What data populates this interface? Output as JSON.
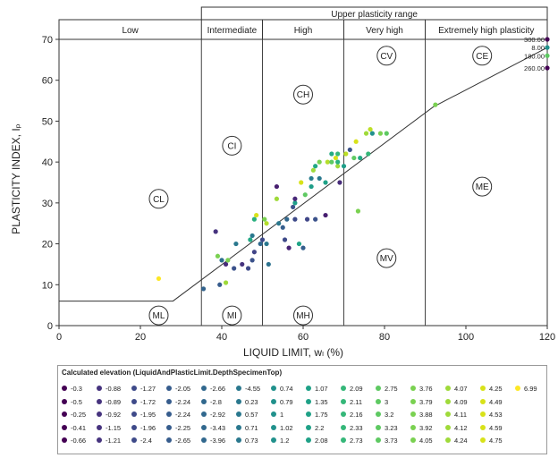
{
  "chart_data": {
    "type": "scatter",
    "title": "",
    "xlabel": "LIQUID LIMIT, wₗ (%)",
    "ylabel": "PLASTICITY INDEX, Iₚ",
    "xlim": [
      0,
      120
    ],
    "ylim": [
      0,
      70
    ],
    "xticks": [
      0,
      20,
      40,
      60,
      80,
      100,
      120
    ],
    "yticks": [
      0,
      10,
      20,
      30,
      40,
      50,
      60,
      70
    ],
    "grid": false,
    "header_title": "Upper plasticity range",
    "zones": [
      {
        "label": "Low",
        "x_from": 0,
        "x_to": 35
      },
      {
        "label": "Intermediate",
        "x_from": 35,
        "x_to": 50
      },
      {
        "label": "High",
        "x_from": 50,
        "x_to": 70
      },
      {
        "label": "Very high",
        "x_from": 70,
        "x_to": 90
      },
      {
        "label": "Extremely high plasticity",
        "x_from": 90,
        "x_to": 120
      }
    ],
    "a_line": [
      [
        0,
        6
      ],
      [
        28,
        6
      ],
      [
        92,
        53.5
      ],
      [
        120,
        68
      ]
    ],
    "region_labels": [
      {
        "text": "CL",
        "x": 24.5,
        "y": 31
      },
      {
        "text": "CI",
        "x": 42.5,
        "y": 44
      },
      {
        "text": "CH",
        "x": 60,
        "y": 56.5
      },
      {
        "text": "CV",
        "x": 80.5,
        "y": 66
      },
      {
        "text": "CE",
        "x": 104,
        "y": 66
      },
      {
        "text": "ME",
        "x": 104,
        "y": 34
      },
      {
        "text": "MV",
        "x": 80.5,
        "y": 16.5
      },
      {
        "text": "ML",
        "x": 24.5,
        "y": 2.5
      },
      {
        "text": "MI",
        "x": 42.5,
        "y": 2.5
      },
      {
        "text": "MH",
        "x": 60,
        "y": 2.5
      }
    ],
    "edge_labels": [
      {
        "text": "300.00",
        "x": 120,
        "y": 70
      },
      {
        "text": "8.00",
        "x": 120,
        "y": 68
      },
      {
        "text": "180.00",
        "x": 120,
        "y": 66
      },
      {
        "text": "260.00",
        "x": 120,
        "y": 63
      }
    ],
    "points": [
      {
        "x": 24.5,
        "y": 11.5,
        "color": "#fde725"
      },
      {
        "x": 35.5,
        "y": 9,
        "color": "#33638d"
      },
      {
        "x": 38.5,
        "y": 23,
        "color": "#46337e"
      },
      {
        "x": 39,
        "y": 17,
        "color": "#7ad151"
      },
      {
        "x": 39.5,
        "y": 10,
        "color": "#365c8d"
      },
      {
        "x": 40,
        "y": 16,
        "color": "#2d708e"
      },
      {
        "x": 41,
        "y": 15,
        "color": "#472d7b"
      },
      {
        "x": 41,
        "y": 10.5,
        "color": "#9fda3a"
      },
      {
        "x": 41.5,
        "y": 16,
        "color": "#7ad151"
      },
      {
        "x": 43,
        "y": 14,
        "color": "#3b528b"
      },
      {
        "x": 43.5,
        "y": 20,
        "color": "#2a788e"
      },
      {
        "x": 45,
        "y": 15,
        "color": "#46337e"
      },
      {
        "x": 46.5,
        "y": 14,
        "color": "#3e4a89"
      },
      {
        "x": 47,
        "y": 21,
        "color": "#22a884"
      },
      {
        "x": 47.5,
        "y": 22,
        "color": "#2a788e"
      },
      {
        "x": 47.5,
        "y": 16,
        "color": "#3b528b"
      },
      {
        "x": 48,
        "y": 18,
        "color": "#414487"
      },
      {
        "x": 48,
        "y": 26,
        "color": "#2ab07f"
      },
      {
        "x": 48.5,
        "y": 27,
        "color": "#d8e219"
      },
      {
        "x": 49.5,
        "y": 20,
        "color": "#31688e"
      },
      {
        "x": 50,
        "y": 21,
        "color": "#3e4a89"
      },
      {
        "x": 50.5,
        "y": 26,
        "color": "#7ad151"
      },
      {
        "x": 51,
        "y": 25,
        "color": "#b5de2b"
      },
      {
        "x": 51,
        "y": 20,
        "color": "#2a788e"
      },
      {
        "x": 51.5,
        "y": 15,
        "color": "#2c728e"
      },
      {
        "x": 53.5,
        "y": 34,
        "color": "#481f70"
      },
      {
        "x": 53.5,
        "y": 31,
        "color": "#9fda3a"
      },
      {
        "x": 54,
        "y": 25,
        "color": "#2a788e"
      },
      {
        "x": 55,
        "y": 24,
        "color": "#355f8d"
      },
      {
        "x": 55.5,
        "y": 21,
        "color": "#3e4a89"
      },
      {
        "x": 56,
        "y": 26,
        "color": "#31688e"
      },
      {
        "x": 56.5,
        "y": 19,
        "color": "#482475"
      },
      {
        "x": 57.5,
        "y": 29,
        "color": "#3b528b"
      },
      {
        "x": 58,
        "y": 30,
        "color": "#1f9e89"
      },
      {
        "x": 58,
        "y": 31,
        "color": "#482878"
      },
      {
        "x": 58,
        "y": 26,
        "color": "#3e4a89"
      },
      {
        "x": 59,
        "y": 20,
        "color": "#20a486"
      },
      {
        "x": 59.5,
        "y": 35,
        "color": "#d8e219"
      },
      {
        "x": 60,
        "y": 19,
        "color": "#355f8d"
      },
      {
        "x": 60.5,
        "y": 32,
        "color": "#5ec962"
      },
      {
        "x": 61,
        "y": 26,
        "color": "#404688"
      },
      {
        "x": 62,
        "y": 36,
        "color": "#287d8e"
      },
      {
        "x": 62,
        "y": 34,
        "color": "#1f9e89"
      },
      {
        "x": 62.5,
        "y": 38,
        "color": "#9fda3a"
      },
      {
        "x": 63,
        "y": 39,
        "color": "#22a884"
      },
      {
        "x": 63,
        "y": 26,
        "color": "#3b528b"
      },
      {
        "x": 64,
        "y": 40,
        "color": "#7ad151"
      },
      {
        "x": 64,
        "y": 36,
        "color": "#2a788e"
      },
      {
        "x": 65.5,
        "y": 27,
        "color": "#481f70"
      },
      {
        "x": 65.5,
        "y": 35,
        "color": "#1fa187"
      },
      {
        "x": 66,
        "y": 40,
        "color": "#b5de2b"
      },
      {
        "x": 67,
        "y": 40,
        "color": "#5ec962"
      },
      {
        "x": 67,
        "y": 42,
        "color": "#25ab82"
      },
      {
        "x": 68,
        "y": 41,
        "color": "#d8e219"
      },
      {
        "x": 68.5,
        "y": 39,
        "color": "#9fda3a"
      },
      {
        "x": 68.5,
        "y": 40,
        "color": "#2ab07f"
      },
      {
        "x": 68.5,
        "y": 42,
        "color": "#35b779"
      },
      {
        "x": 69,
        "y": 35,
        "color": "#472c7a"
      },
      {
        "x": 70,
        "y": 39,
        "color": "#1f9e89"
      },
      {
        "x": 70.5,
        "y": 42,
        "color": "#bddf26"
      },
      {
        "x": 71.5,
        "y": 43,
        "color": "#3b528b"
      },
      {
        "x": 72.5,
        "y": 41,
        "color": "#5ec962"
      },
      {
        "x": 73,
        "y": 45,
        "color": "#d8e219"
      },
      {
        "x": 73.5,
        "y": 28,
        "color": "#7ad151"
      },
      {
        "x": 74,
        "y": 41,
        "color": "#23a983"
      },
      {
        "x": 75.5,
        "y": 47,
        "color": "#9fda3a"
      },
      {
        "x": 76,
        "y": 42,
        "color": "#35b779"
      },
      {
        "x": 76.5,
        "y": 48,
        "color": "#bddf26"
      },
      {
        "x": 77,
        "y": 47,
        "color": "#21918c"
      },
      {
        "x": 79,
        "y": 47,
        "color": "#7ad151"
      },
      {
        "x": 80.5,
        "y": 47,
        "color": "#5ec962"
      },
      {
        "x": 92.5,
        "y": 54,
        "color": "#7ad151"
      },
      {
        "x": 120,
        "y": 70,
        "color": "#440154"
      },
      {
        "x": 120,
        "y": 68,
        "color": "#21918c"
      },
      {
        "x": 120,
        "y": 66,
        "color": "#5ec962"
      },
      {
        "x": 120,
        "y": 63,
        "color": "#440154"
      }
    ]
  },
  "legend": {
    "title": "Calculated elevation (LiquidAndPlasticLimit.DepthSpecimenTop)",
    "columns": [
      [
        {
          "v": "-0.3",
          "c": "#440154"
        },
        {
          "v": "-0.5",
          "c": "#440154"
        },
        {
          "v": "-0.25",
          "c": "#440154"
        },
        {
          "v": "-0.41",
          "c": "#440154"
        },
        {
          "v": "-0.66",
          "c": "#440154"
        }
      ],
      [
        {
          "v": "-0.88",
          "c": "#46337e"
        },
        {
          "v": "-0.89",
          "c": "#46337e"
        },
        {
          "v": "-0.92",
          "c": "#46337e"
        },
        {
          "v": "-1.15",
          "c": "#46337e"
        },
        {
          "v": "-1.21",
          "c": "#46337e"
        }
      ],
      [
        {
          "v": "-1.27",
          "c": "#3e4a89"
        },
        {
          "v": "-1.72",
          "c": "#3e4a89"
        },
        {
          "v": "-1.95",
          "c": "#3e4a89"
        },
        {
          "v": "-1.96",
          "c": "#3e4a89"
        },
        {
          "v": "-2.4",
          "c": "#3e4a89"
        }
      ],
      [
        {
          "v": "-2.05",
          "c": "#365c8d"
        },
        {
          "v": "-2.24",
          "c": "#365c8d"
        },
        {
          "v": "-2.24",
          "c": "#365c8d"
        },
        {
          "v": "-2.25",
          "c": "#365c8d"
        },
        {
          "v": "-2.65",
          "c": "#365c8d"
        }
      ],
      [
        {
          "v": "-2.66",
          "c": "#31688e"
        },
        {
          "v": "-2.8",
          "c": "#31688e"
        },
        {
          "v": "-2.92",
          "c": "#31688e"
        },
        {
          "v": "-3.43",
          "c": "#31688e"
        },
        {
          "v": "-3.96",
          "c": "#31688e"
        }
      ],
      [
        {
          "v": "-4.55",
          "c": "#2a788e"
        },
        {
          "v": "0.23",
          "c": "#2a788e"
        },
        {
          "v": "0.57",
          "c": "#2a788e"
        },
        {
          "v": "0.71",
          "c": "#2a788e"
        },
        {
          "v": "0.73",
          "c": "#2a788e"
        }
      ],
      [
        {
          "v": "0.74",
          "c": "#21918c"
        },
        {
          "v": "0.79",
          "c": "#21918c"
        },
        {
          "v": "1",
          "c": "#21918c"
        },
        {
          "v": "1.02",
          "c": "#21918c"
        },
        {
          "v": "1.2",
          "c": "#21918c"
        }
      ],
      [
        {
          "v": "1.07",
          "c": "#1fa187"
        },
        {
          "v": "1.35",
          "c": "#1fa187"
        },
        {
          "v": "1.75",
          "c": "#1fa187"
        },
        {
          "v": "2.2",
          "c": "#1fa187"
        },
        {
          "v": "2.08",
          "c": "#1fa187"
        }
      ],
      [
        {
          "v": "2.09",
          "c": "#35b779"
        },
        {
          "v": "2.11",
          "c": "#35b779"
        },
        {
          "v": "2.16",
          "c": "#35b779"
        },
        {
          "v": "2.33",
          "c": "#35b779"
        },
        {
          "v": "2.73",
          "c": "#35b779"
        }
      ],
      [
        {
          "v": "2.75",
          "c": "#5ec962"
        },
        {
          "v": "3",
          "c": "#5ec962"
        },
        {
          "v": "3.2",
          "c": "#5ec962"
        },
        {
          "v": "3.23",
          "c": "#5ec962"
        },
        {
          "v": "3.73",
          "c": "#5ec962"
        }
      ],
      [
        {
          "v": "3.76",
          "c": "#7ad151"
        },
        {
          "v": "3.79",
          "c": "#7ad151"
        },
        {
          "v": "3.88",
          "c": "#7ad151"
        },
        {
          "v": "3.92",
          "c": "#7ad151"
        },
        {
          "v": "4.05",
          "c": "#7ad151"
        }
      ],
      [
        {
          "v": "4.07",
          "c": "#9fda3a"
        },
        {
          "v": "4.09",
          "c": "#9fda3a"
        },
        {
          "v": "4.11",
          "c": "#9fda3a"
        },
        {
          "v": "4.12",
          "c": "#9fda3a"
        },
        {
          "v": "4.24",
          "c": "#9fda3a"
        }
      ],
      [
        {
          "v": "4.25",
          "c": "#d8e219"
        },
        {
          "v": "4.49",
          "c": "#d8e219"
        },
        {
          "v": "4.53",
          "c": "#d8e219"
        },
        {
          "v": "4.59",
          "c": "#d8e219"
        },
        {
          "v": "4.75",
          "c": "#d8e219"
        }
      ],
      [
        {
          "v": "6.99",
          "c": "#fde725"
        }
      ]
    ]
  }
}
